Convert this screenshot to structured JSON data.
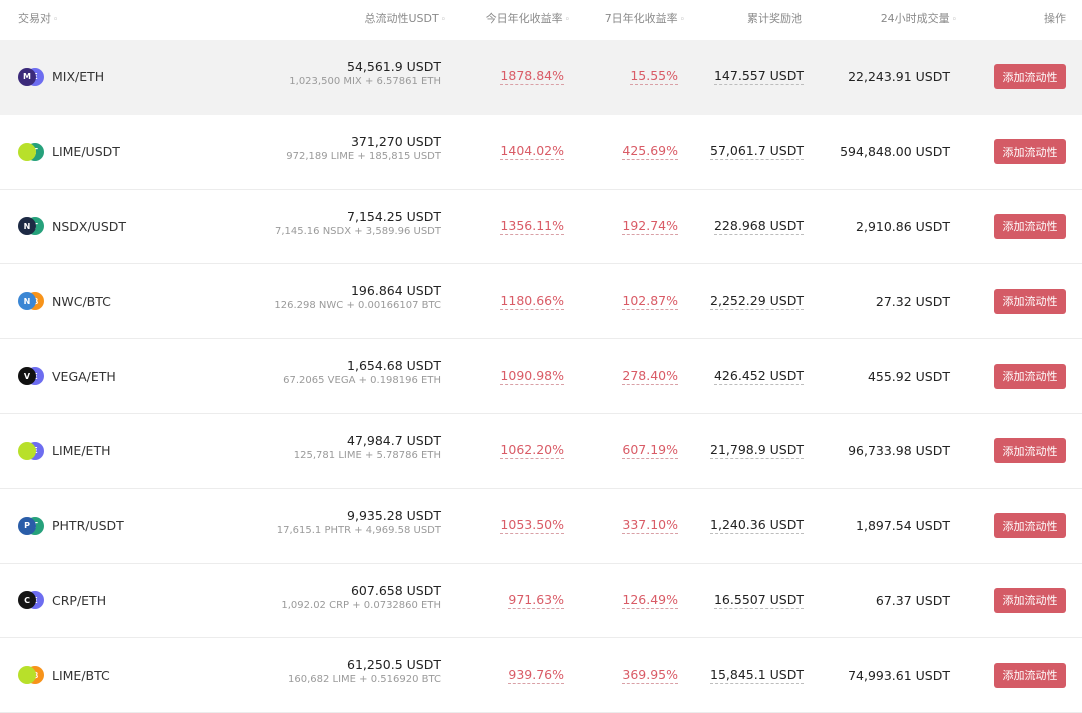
{
  "header": {
    "pair": "交易对",
    "liquidity": "总流动性USDT",
    "apy_today": "今日年化收益率",
    "apy_7d": "7日年化收益率",
    "reward_pool": "累计奖励池",
    "volume_24h": "24小时成交量",
    "action": "操作",
    "sort_mark": "◦"
  },
  "rows": [
    {
      "pair": "MIX/ETH",
      "liquidity": "54,561.9 USDT",
      "composition": "1,023,500 MIX + 6.57861 ETH",
      "apy_today": "1878.84%",
      "apy_7d": "15.55%",
      "reward": "147.557 USDT",
      "volume": "22,243.91 USDT",
      "button": "添加流动性",
      "icon_a": "M",
      "icon_b": "E",
      "color_a": "#3b2a7a",
      "color_b": "#6d6df0"
    },
    {
      "pair": "LIME/USDT",
      "liquidity": "371,270 USDT",
      "composition": "972,189 LIME + 185,815 USDT",
      "apy_today": "1404.02%",
      "apy_7d": "425.69%",
      "reward": "57,061.7 USDT",
      "volume": "594,848.00 USDT",
      "button": "添加流动性",
      "icon_a": "",
      "icon_b": "T",
      "color_a": "#b8e02a",
      "color_b": "#26a17b"
    },
    {
      "pair": "NSDX/USDT",
      "liquidity": "7,154.25 USDT",
      "composition": "7,145.16 NSDX + 3,589.96 USDT",
      "apy_today": "1356.11%",
      "apy_7d": "192.74%",
      "reward": "228.968 USDT",
      "volume": "2,910.86 USDT",
      "button": "添加流动性",
      "icon_a": "N",
      "icon_b": "T",
      "color_a": "#1d2a44",
      "color_b": "#26a17b"
    },
    {
      "pair": "NWC/BTC",
      "liquidity": "196.864 USDT",
      "composition": "126.298 NWC + 0.00166107 BTC",
      "apy_today": "1180.66%",
      "apy_7d": "102.87%",
      "reward": "2,252.29 USDT",
      "volume": "27.32 USDT",
      "button": "添加流动性",
      "icon_a": "N",
      "icon_b": "₿",
      "color_a": "#3a86d4",
      "color_b": "#f7931a"
    },
    {
      "pair": "VEGA/ETH",
      "liquidity": "1,654.68 USDT",
      "composition": "67.2065 VEGA + 0.198196 ETH",
      "apy_today": "1090.98%",
      "apy_7d": "278.40%",
      "reward": "426.452 USDT",
      "volume": "455.92 USDT",
      "button": "添加流动性",
      "icon_a": "V",
      "icon_b": "E",
      "color_a": "#111111",
      "color_b": "#6d6df0"
    },
    {
      "pair": "LIME/ETH",
      "liquidity": "47,984.7 USDT",
      "composition": "125,781 LIME + 5.78786 ETH",
      "apy_today": "1062.20%",
      "apy_7d": "607.19%",
      "reward": "21,798.9 USDT",
      "volume": "96,733.98 USDT",
      "button": "添加流动性",
      "icon_a": "",
      "icon_b": "E",
      "color_a": "#b8e02a",
      "color_b": "#6d6df0"
    },
    {
      "pair": "PHTR/USDT",
      "liquidity": "9,935.28 USDT",
      "composition": "17,615.1 PHTR + 4,969.58 USDT",
      "apy_today": "1053.50%",
      "apy_7d": "337.10%",
      "reward": "1,240.36 USDT",
      "volume": "1,897.54 USDT",
      "button": "添加流动性",
      "icon_a": "P",
      "icon_b": "T",
      "color_a": "#2a5da8",
      "color_b": "#26a17b"
    },
    {
      "pair": "CRP/ETH",
      "liquidity": "607.658 USDT",
      "composition": "1,092.02 CRP + 0.0732860 ETH",
      "apy_today": "971.63%",
      "apy_7d": "126.49%",
      "reward": "16.5507 USDT",
      "volume": "67.37 USDT",
      "button": "添加流动性",
      "icon_a": "C",
      "icon_b": "E",
      "color_a": "#151515",
      "color_b": "#6d6df0"
    },
    {
      "pair": "LIME/BTC",
      "liquidity": "61,250.5 USDT",
      "composition": "160,682 LIME + 0.516920 BTC",
      "apy_today": "939.76%",
      "apy_7d": "369.95%",
      "reward": "15,845.1 USDT",
      "volume": "74,993.61 USDT",
      "button": "添加流动性",
      "icon_a": "",
      "icon_b": "₿",
      "color_a": "#b8e02a",
      "color_b": "#f7931a"
    }
  ]
}
